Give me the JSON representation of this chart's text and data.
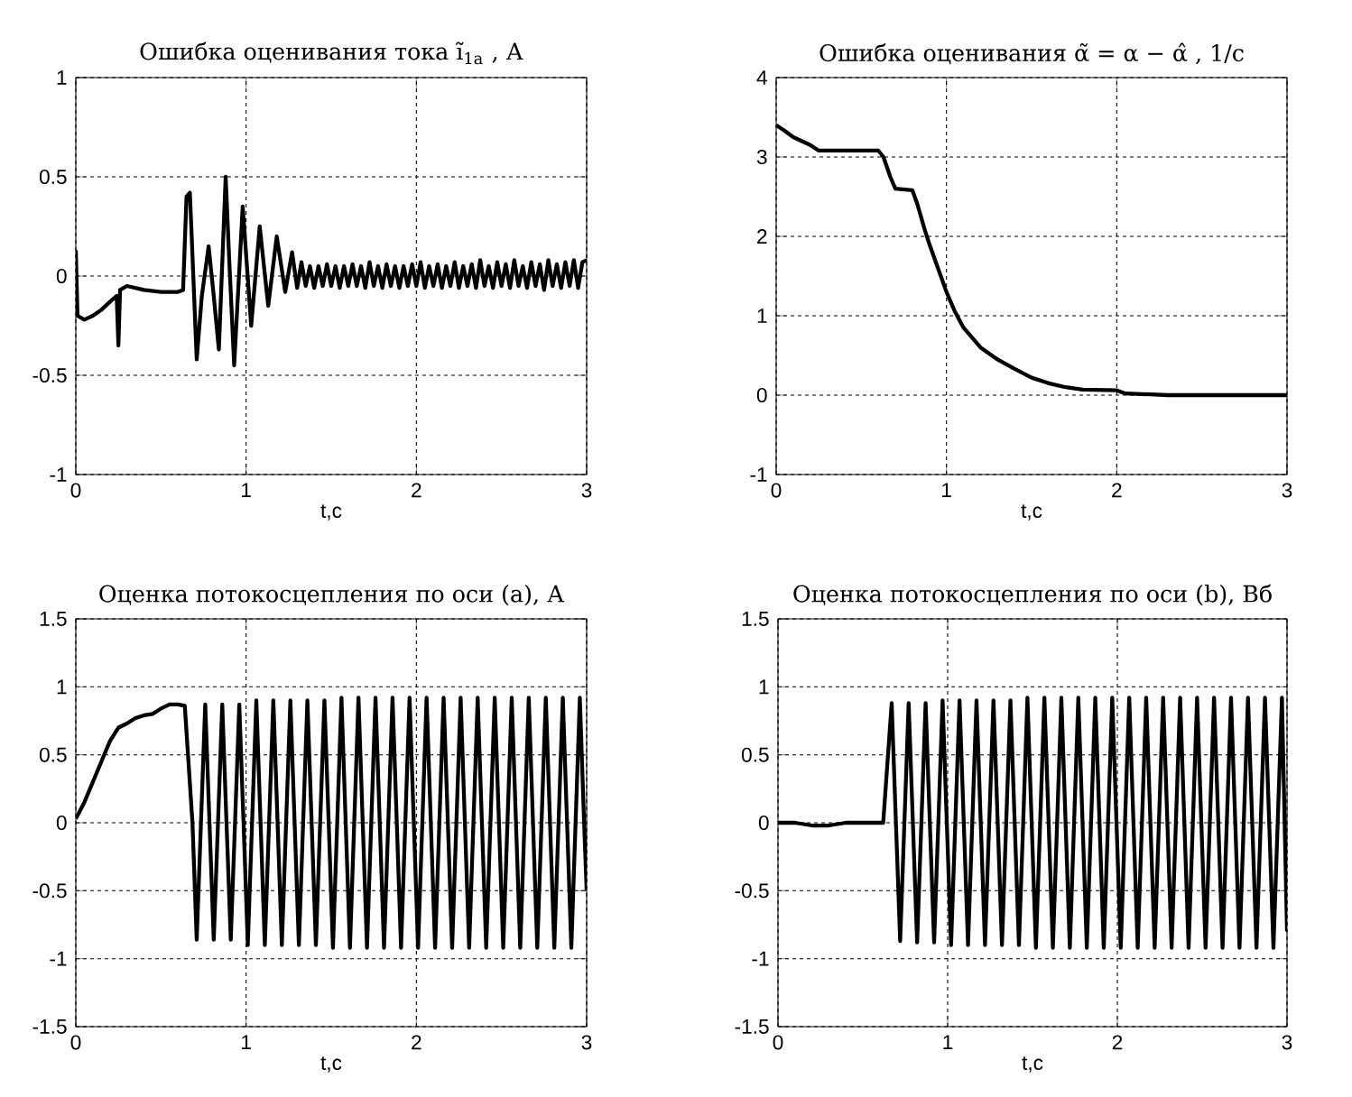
{
  "chart_data": [
    {
      "type": "line",
      "title": "Ошибка оценивания тока ĩ$_{1a}$ , А",
      "xlabel": "t,c",
      "xlim": [
        0,
        3
      ],
      "xticks": [
        0,
        1,
        2,
        3
      ],
      "ylim": [
        -1,
        1
      ],
      "yticks": [
        -1,
        -0.5,
        0,
        0.5,
        1
      ],
      "grid": true,
      "series": [
        {
          "color": "#000000",
          "x": [
            0,
            0.01,
            0.05,
            0.1,
            0.15,
            0.2,
            0.24,
            0.25,
            0.26,
            0.3,
            0.4,
            0.5,
            0.6,
            0.63,
            0.65,
            0.67,
            0.69,
            0.71,
            0.74,
            0.78,
            0.81,
            0.84,
            0.88,
            0.9,
            0.93,
            0.98,
            1.03,
            1.08,
            1.13,
            1.18,
            1.23,
            1.27,
            1.3,
            1.325,
            1.35,
            1.375,
            1.4,
            1.425,
            1.45,
            1.475,
            1.5,
            1.525,
            1.55,
            1.575,
            1.6,
            1.625,
            1.65,
            1.675,
            1.7,
            1.725,
            1.75,
            1.775,
            1.8,
            1.825,
            1.85,
            1.875,
            1.9,
            1.925,
            1.95,
            1.975,
            2.0,
            2.025,
            2.05,
            2.075,
            2.1,
            2.125,
            2.15,
            2.175,
            2.2,
            2.225,
            2.25,
            2.275,
            2.3,
            2.325,
            2.35,
            2.375,
            2.4,
            2.425,
            2.45,
            2.475,
            2.5,
            2.525,
            2.55,
            2.575,
            2.6,
            2.625,
            2.65,
            2.675,
            2.7,
            2.725,
            2.75,
            2.775,
            2.8,
            2.825,
            2.85,
            2.875,
            2.9,
            2.925,
            2.95,
            2.975,
            3.0
          ],
          "values": [
            0.13,
            -0.2,
            -0.22,
            -0.2,
            -0.17,
            -0.13,
            -0.1,
            -0.35,
            -0.07,
            -0.05,
            -0.07,
            -0.08,
            -0.08,
            -0.07,
            0.4,
            0.42,
            0.0,
            -0.42,
            -0.1,
            0.15,
            -0.1,
            -0.37,
            0.5,
            0.1,
            -0.45,
            0.35,
            -0.25,
            0.25,
            -0.15,
            0.2,
            -0.08,
            0.12,
            -0.06,
            0.07,
            -0.05,
            0.05,
            -0.06,
            0.05,
            -0.05,
            0.06,
            -0.05,
            0.05,
            -0.06,
            0.05,
            -0.05,
            0.06,
            -0.05,
            0.05,
            -0.06,
            0.07,
            -0.05,
            0.05,
            -0.06,
            0.06,
            -0.05,
            0.05,
            -0.06,
            0.05,
            -0.05,
            0.06,
            -0.05,
            0.07,
            -0.06,
            0.05,
            -0.05,
            0.06,
            -0.06,
            0.05,
            -0.05,
            0.07,
            -0.06,
            0.05,
            -0.05,
            0.06,
            -0.06,
            0.08,
            -0.05,
            0.05,
            -0.06,
            0.07,
            -0.05,
            0.06,
            -0.06,
            0.08,
            -0.05,
            0.05,
            -0.06,
            0.07,
            -0.05,
            0.06,
            -0.07,
            0.08,
            -0.05,
            0.06,
            -0.06,
            0.07,
            -0.05,
            0.08,
            -0.06,
            0.07,
            0.08
          ]
        }
      ]
    },
    {
      "type": "line",
      "title": "Ошибка оценивания α̃ = α − α̂ , 1/с",
      "xlabel": "t,c",
      "xlim": [
        0,
        3
      ],
      "xticks": [
        0,
        1,
        2,
        3
      ],
      "ylim": [
        -1,
        4
      ],
      "yticks": [
        -1,
        0,
        1,
        2,
        3,
        4
      ],
      "grid": true,
      "series": [
        {
          "color": "#000000",
          "x": [
            0,
            0.05,
            0.1,
            0.2,
            0.25,
            0.6,
            0.63,
            0.67,
            0.7,
            0.8,
            0.83,
            0.87,
            0.9,
            0.95,
            1.0,
            1.05,
            1.1,
            1.2,
            1.3,
            1.4,
            1.5,
            1.6,
            1.7,
            1.8,
            2.0,
            2.05,
            2.2,
            2.3,
            3.0
          ],
          "values": [
            3.4,
            3.33,
            3.25,
            3.15,
            3.08,
            3.08,
            3.0,
            2.75,
            2.6,
            2.58,
            2.4,
            2.1,
            1.9,
            1.6,
            1.3,
            1.05,
            0.85,
            0.6,
            0.45,
            0.33,
            0.22,
            0.15,
            0.1,
            0.07,
            0.06,
            0.02,
            0.01,
            0.0,
            0.0
          ]
        }
      ]
    },
    {
      "type": "line",
      "title": "Оценка потокосцепления по оси (a), А",
      "xlabel": "t,c",
      "xlim": [
        0,
        3
      ],
      "xticks": [
        0,
        1,
        2,
        3
      ],
      "ylim": [
        -1.5,
        1.5
      ],
      "yticks": [
        -1.5,
        -1,
        -0.5,
        0,
        0.5,
        1,
        1.5
      ],
      "grid": true,
      "series": [
        {
          "color": "#000000",
          "x": [
            0,
            0.05,
            0.1,
            0.15,
            0.2,
            0.25,
            0.3,
            0.35,
            0.4,
            0.45,
            0.5,
            0.55,
            0.6,
            0.64,
            0.685,
            0.71,
            0.735,
            0.76,
            0.785,
            0.81,
            0.835,
            0.86,
            0.885,
            0.91,
            0.935,
            0.96,
            0.985,
            1.01,
            1.035,
            1.06,
            1.085,
            1.11,
            1.135,
            1.16,
            1.185,
            1.21,
            1.235,
            1.26,
            1.285,
            1.31,
            1.335,
            1.36,
            1.385,
            1.41,
            1.435,
            1.46,
            1.485,
            1.51,
            1.535,
            1.56,
            1.585,
            1.61,
            1.635,
            1.66,
            1.685,
            1.71,
            1.735,
            1.76,
            1.785,
            1.81,
            1.835,
            1.86,
            1.885,
            1.91,
            1.935,
            1.96,
            1.985,
            2.01,
            2.035,
            2.06,
            2.085,
            2.11,
            2.135,
            2.16,
            2.185,
            2.21,
            2.235,
            2.26,
            2.285,
            2.31,
            2.335,
            2.36,
            2.385,
            2.41,
            2.435,
            2.46,
            2.485,
            2.51,
            2.535,
            2.56,
            2.585,
            2.61,
            2.635,
            2.66,
            2.685,
            2.71,
            2.735,
            2.76,
            2.785,
            2.81,
            2.835,
            2.86,
            2.885,
            2.91,
            2.935,
            2.96,
            2.985,
            3.0
          ],
          "values": [
            0.03,
            0.15,
            0.3,
            0.45,
            0.6,
            0.7,
            0.73,
            0.77,
            0.79,
            0.8,
            0.84,
            0.87,
            0.87,
            0.86,
            0,
            -0.86,
            0,
            0.87,
            0,
            -0.86,
            0,
            0.87,
            0,
            -0.86,
            0,
            0.87,
            0,
            -0.9,
            0,
            0.9,
            0,
            -0.9,
            0,
            0.9,
            0,
            -0.9,
            0,
            0.9,
            0,
            -0.9,
            0,
            0.9,
            0,
            -0.9,
            0,
            0.9,
            0,
            -0.92,
            0,
            0.92,
            0,
            -0.92,
            0,
            0.92,
            0,
            -0.92,
            0,
            0.92,
            0,
            -0.92,
            0,
            0.92,
            0,
            -0.92,
            0,
            0.92,
            0,
            -0.92,
            0,
            0.92,
            0,
            -0.92,
            0,
            0.92,
            0,
            -0.92,
            0,
            0.92,
            0,
            -0.92,
            0,
            0.92,
            0,
            -0.92,
            0,
            0.92,
            0,
            -0.92,
            0,
            0.92,
            0,
            -0.92,
            0,
            0.92,
            0,
            -0.92,
            0,
            0.92,
            0,
            -0.92,
            0,
            0.92,
            0,
            -0.92,
            0,
            0.92,
            0,
            -0.5
          ]
        }
      ]
    },
    {
      "type": "line",
      "title": "Оценка потокосцепления по оси (b), Вб",
      "xlabel": "t,c",
      "xlim": [
        0,
        3
      ],
      "xticks": [
        0,
        1,
        2,
        3
      ],
      "ylim": [
        -1.5,
        1.5
      ],
      "yticks": [
        -1.5,
        -1,
        -0.5,
        0,
        0.5,
        1,
        1.5
      ],
      "grid": true,
      "series": [
        {
          "color": "#000000",
          "x": [
            0,
            0.1,
            0.2,
            0.3,
            0.4,
            0.5,
            0.6,
            0.62,
            0.67,
            0.695,
            0.72,
            0.745,
            0.77,
            0.795,
            0.82,
            0.845,
            0.87,
            0.895,
            0.92,
            0.945,
            0.97,
            0.995,
            1.02,
            1.045,
            1.07,
            1.095,
            1.12,
            1.145,
            1.17,
            1.195,
            1.22,
            1.245,
            1.27,
            1.295,
            1.32,
            1.345,
            1.37,
            1.395,
            1.42,
            1.445,
            1.47,
            1.495,
            1.52,
            1.545,
            1.57,
            1.595,
            1.62,
            1.645,
            1.67,
            1.695,
            1.72,
            1.745,
            1.77,
            1.795,
            1.82,
            1.845,
            1.87,
            1.895,
            1.92,
            1.945,
            1.97,
            1.995,
            2.02,
            2.045,
            2.07,
            2.095,
            2.12,
            2.145,
            2.17,
            2.195,
            2.22,
            2.245,
            2.27,
            2.295,
            2.32,
            2.345,
            2.37,
            2.395,
            2.42,
            2.445,
            2.47,
            2.495,
            2.52,
            2.545,
            2.57,
            2.595,
            2.62,
            2.645,
            2.67,
            2.695,
            2.72,
            2.745,
            2.77,
            2.795,
            2.82,
            2.845,
            2.87,
            2.895,
            2.92,
            2.945,
            2.97,
            3.0
          ],
          "values": [
            0,
            0,
            -0.02,
            -0.02,
            0,
            0,
            0,
            0,
            0.88,
            0,
            -0.87,
            0,
            0.88,
            0,
            -0.88,
            0,
            0.88,
            0,
            -0.88,
            0,
            0.9,
            0,
            -0.9,
            0,
            0.9,
            0,
            -0.9,
            0,
            0.9,
            0,
            -0.9,
            0,
            0.9,
            0,
            -0.9,
            0,
            0.9,
            0,
            -0.9,
            0,
            0.92,
            0,
            -0.92,
            0,
            0.92,
            0,
            -0.92,
            0,
            0.92,
            0,
            -0.92,
            0,
            0.92,
            0,
            -0.92,
            0,
            0.92,
            0,
            -0.92,
            0,
            0.92,
            0,
            -0.92,
            0,
            0.92,
            0,
            -0.92,
            0,
            0.92,
            0,
            -0.92,
            0,
            0.92,
            0,
            -0.92,
            0,
            0.92,
            0,
            -0.92,
            0,
            0.92,
            0,
            -0.92,
            0,
            0.92,
            0,
            -0.92,
            0,
            0.92,
            0,
            -0.92,
            0,
            0.92,
            0,
            -0.92,
            0,
            0.92,
            0,
            -0.92,
            0,
            0.92,
            -0.8
          ]
        }
      ]
    }
  ]
}
